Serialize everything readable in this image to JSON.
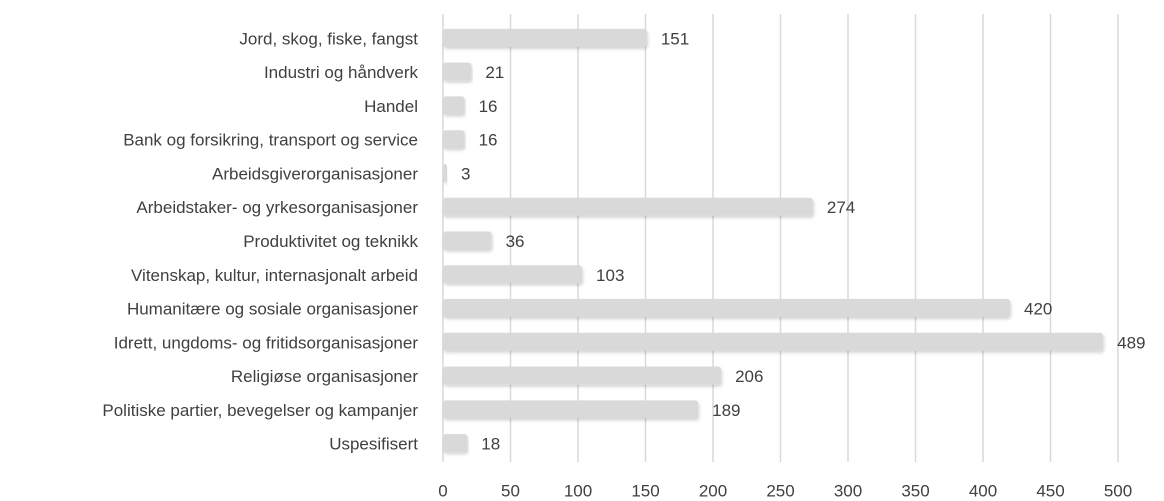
{
  "chart_data": {
    "type": "bar",
    "orientation": "horizontal",
    "categories": [
      "Jord, skog, fiske, fangst",
      "Industri og håndverk",
      "Handel",
      "Bank og forsikring, transport og service",
      "Arbeidsgiverorganisasjoner",
      "Arbeidstaker- og yrkesorganisasjoner",
      "Produktivitet og teknikk",
      "Vitenskap, kultur, internasjonalt arbeid",
      "Humanitære og sosiale organisasjoner",
      "Idrett, ungdoms- og fritidsorganisasjoner",
      "Religiøse organisasjoner",
      "Politiske partier, bevegelser og kampanjer",
      "Uspesifisert"
    ],
    "values": [
      151,
      21,
      16,
      16,
      3,
      274,
      36,
      103,
      420,
      489,
      206,
      189,
      18
    ],
    "color": "#d9d9d9",
    "xlim": [
      0,
      500
    ],
    "xticks": [
      0,
      50,
      100,
      150,
      200,
      250,
      300,
      350,
      400,
      450,
      500
    ],
    "grid": true
  }
}
